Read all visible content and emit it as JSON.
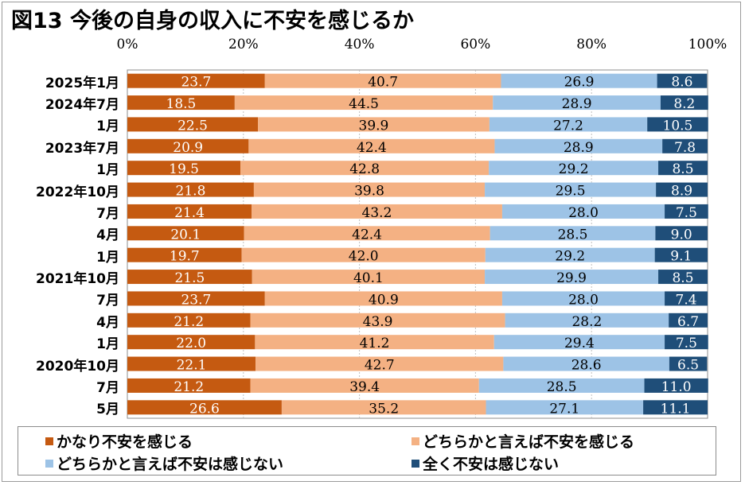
{
  "chart_data": {
    "type": "bar",
    "orientation": "horizontal",
    "stacked": "100%",
    "title": "図13 今後の自身の収入に不安を感じるか",
    "xlabel": "",
    "ylabel": "",
    "xlim": [
      0,
      100
    ],
    "x_ticks": [
      "0%",
      "20%",
      "40%",
      "60%",
      "80%",
      "100%"
    ],
    "x_tick_values": [
      0,
      20,
      40,
      60,
      80,
      100
    ],
    "grid": "vertical dashed",
    "legend_position": "bottom",
    "categories": [
      "2025年1月",
      "2024年7月",
      "1月",
      "2023年7月",
      "1月",
      "2022年10月",
      "7月",
      "4月",
      "1月",
      "2021年10月",
      "7月",
      "4月",
      "1月",
      "2020年10月",
      "7月",
      "5月"
    ],
    "series": [
      {
        "name": "かなり不安を感じる",
        "color": "#C55A11",
        "label_color": "#FFFFFF",
        "values": [
          23.7,
          18.5,
          22.5,
          20.9,
          19.5,
          21.8,
          21.4,
          20.1,
          19.7,
          21.5,
          23.7,
          21.2,
          22.0,
          22.1,
          21.2,
          26.6
        ]
      },
      {
        "name": "どちらかと言えば不安を感じる",
        "color": "#F4B183",
        "label_color": "#000000",
        "values": [
          40.7,
          44.5,
          39.9,
          42.4,
          42.8,
          39.8,
          43.2,
          42.4,
          42.0,
          40.1,
          40.9,
          43.9,
          41.2,
          42.7,
          39.4,
          35.2
        ]
      },
      {
        "name": "どちらかと言えば不安は感じない",
        "color": "#9DC3E6",
        "label_color": "#000000",
        "values": [
          26.9,
          28.9,
          27.2,
          28.9,
          29.2,
          29.5,
          28.0,
          28.5,
          29.2,
          29.9,
          28.0,
          28.2,
          29.4,
          28.6,
          28.5,
          27.1
        ]
      },
      {
        "name": "全く不安は感じない",
        "color": "#1F4E79",
        "label_color": "#FFFFFF",
        "values": [
          8.6,
          8.2,
          10.5,
          7.8,
          8.5,
          8.9,
          7.5,
          9.0,
          9.1,
          8.5,
          7.4,
          6.7,
          7.5,
          6.5,
          11.0,
          11.1
        ]
      }
    ]
  }
}
